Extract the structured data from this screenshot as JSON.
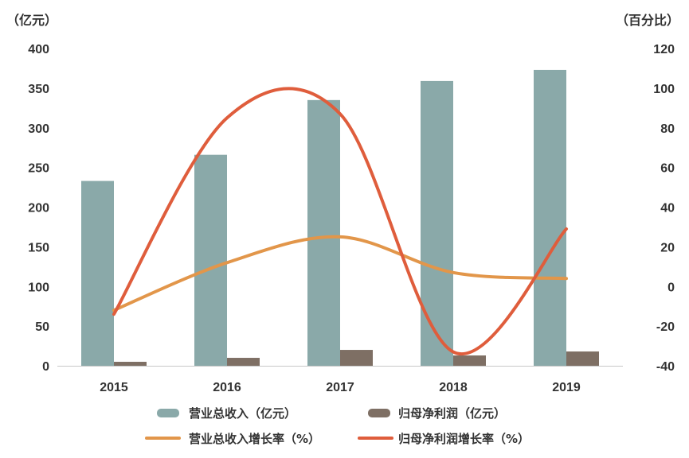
{
  "chart_data": {
    "type": "bar",
    "categories": [
      "2015",
      "2016",
      "2017",
      "2018",
      "2019"
    ],
    "left_axis": {
      "unit": "（亿元）",
      "ylim": [
        0,
        400
      ],
      "ticks": [
        0,
        50,
        100,
        150,
        200,
        250,
        300,
        350,
        400
      ]
    },
    "right_axis": {
      "unit": "（百分比）",
      "ylim": [
        -40,
        120
      ],
      "ticks": [
        -40,
        -20,
        0,
        20,
        40,
        60,
        80,
        100,
        120
      ]
    },
    "series": [
      {
        "name": "营业总收入（亿元）",
        "type": "bar",
        "axis": "left",
        "color": "#8aa9a9",
        "values": [
          233,
          266,
          335,
          359,
          373
        ]
      },
      {
        "name": "归母净利润（亿元）",
        "type": "bar",
        "axis": "left",
        "color": "#7e6f64",
        "values": [
          5,
          10,
          20,
          13,
          18
        ]
      },
      {
        "name": "营业总收入增长率（%）",
        "type": "line",
        "axis": "right",
        "color": "#e2964a",
        "values": [
          -12,
          12,
          25,
          7,
          4
        ]
      },
      {
        "name": "归母净利润增长率（%）",
        "type": "line",
        "axis": "right",
        "color": "#df5d3c",
        "values": [
          -14,
          85,
          87,
          -33,
          29
        ]
      }
    ],
    "grid": false,
    "legend_position": "bottom"
  }
}
